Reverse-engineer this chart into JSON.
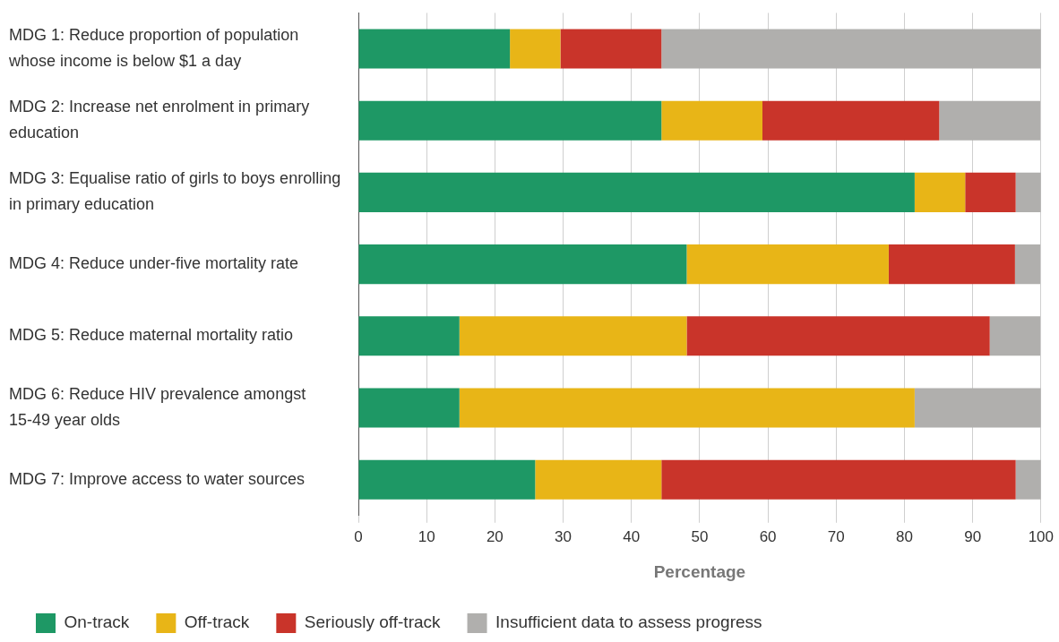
{
  "chart_data": {
    "type": "bar",
    "orientation": "horizontal",
    "stacked": true,
    "xlabel": "Percentage",
    "categories": [
      "MDG 1: Reduce proportion of population whose income is below $1 a day",
      "MDG 2: Increase net enrolment in primary education",
      "MDG 3: Equalise ratio of girls to boys enrolling in primary education",
      "MDG 4: Reduce under-five mortality rate",
      "MDG 5: Reduce maternal mortality ratio",
      "MDG 6: Reduce HIV prevalence amongst 15-49 year olds",
      "MDG 7: Improve access to water sources"
    ],
    "series": [
      {
        "name": "On-track",
        "color": "#1e9865",
        "values": [
          22.2,
          44.4,
          81.5,
          48.1,
          14.8,
          14.8,
          25.9
        ]
      },
      {
        "name": "Off-track",
        "color": "#e8b517",
        "values": [
          7.4,
          14.8,
          7.4,
          29.6,
          33.3,
          66.7,
          18.5
        ]
      },
      {
        "name": "Seriously off-track",
        "color": "#c9342a",
        "values": [
          14.8,
          25.9,
          7.4,
          18.5,
          44.4,
          0,
          51.9
        ]
      },
      {
        "name": "Insufficient data to assess progress",
        "color": "#b0afad",
        "values": [
          55.6,
          14.8,
          3.7,
          3.7,
          7.4,
          18.5,
          3.7
        ]
      }
    ],
    "xlim": [
      0,
      100
    ],
    "xticks": [
      0,
      10,
      20,
      30,
      40,
      50,
      60,
      70,
      80,
      90,
      100
    ],
    "grid": "x",
    "legend": "bottom left"
  }
}
